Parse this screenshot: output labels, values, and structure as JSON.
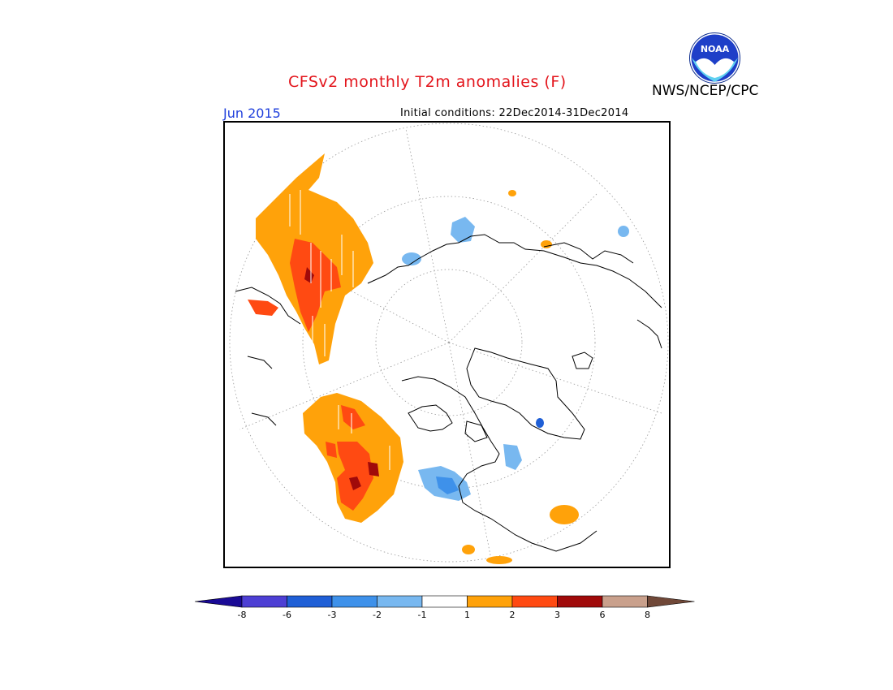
{
  "header": {
    "title": "CFSv2 monthly T2m anomalies (F)",
    "agency": "NWS/NCEP/CPC",
    "month": "Jun 2015",
    "initial_conditions": "Initial conditions: 22Dec2014-31Dec2014",
    "logo_text": "NOAA"
  },
  "colorbar": {
    "labels": [
      "-8",
      "-6",
      "-3",
      "-2",
      "-1",
      "1",
      "2",
      "3",
      "6",
      "8"
    ],
    "colors": [
      "#1a0a96",
      "#4d3fd4",
      "#1f5fd6",
      "#3e91ea",
      "#78b8f0",
      "#ffffff",
      "#ffa20a",
      "#ff4a12",
      "#a00a0a",
      "#c9a08c",
      "#704838"
    ]
  },
  "map": {
    "projection": "north-polar-stereographic",
    "colors": {
      "warm1": "#ffa20a",
      "warm2": "#ff4a12",
      "warm3": "#a00a0a",
      "cool1": "#78b8f0",
      "cool2": "#3e91ea",
      "cool3": "#1f5fd6"
    }
  }
}
